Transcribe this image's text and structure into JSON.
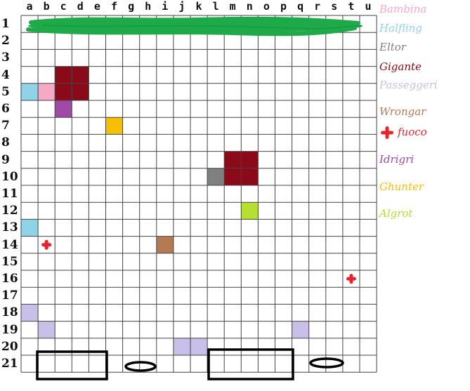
{
  "columns": [
    "a",
    "b",
    "c",
    "d",
    "e",
    "f",
    "g",
    "h",
    "i",
    "j",
    "k",
    "l",
    "m",
    "n",
    "o",
    "p",
    "q",
    "r",
    "s",
    "t",
    "u"
  ],
  "rows": [
    "1",
    "2",
    "3",
    "4",
    "5",
    "6",
    "7",
    "8",
    "9",
    "10",
    "11",
    "12",
    "13",
    "14",
    "15",
    "16",
    "17",
    "18",
    "19",
    "20",
    "21"
  ],
  "grid_color": "#444444",
  "header_scribble_color": "#1faa4a",
  "legend": [
    {
      "label": "Bambina",
      "color": "#f6a9c6"
    },
    {
      "label": "Halfling",
      "color": "#8fd3e8"
    },
    {
      "label": "Eltor",
      "color": "#808080"
    },
    {
      "label": "Gigante",
      "color": "#8b0a1a"
    },
    {
      "label": "Passeggeri",
      "color": "#c8c0e8"
    },
    {
      "label": "Wrongar",
      "color": "#b67a52"
    },
    {
      "label": "fuoco",
      "color": "#e8232e",
      "icon": "fire-cross-icon"
    },
    {
      "label": "Idrigri",
      "color": "#a049a6"
    },
    {
      "label": "Ghunter",
      "color": "#f5c000"
    },
    {
      "label": "Algrot",
      "color": "#b4e030"
    }
  ],
  "tokens": [
    {
      "type": "Gigante",
      "cells": [
        "c4",
        "d4",
        "c5",
        "d5"
      ]
    },
    {
      "type": "Halfling",
      "cells": [
        "a5"
      ]
    },
    {
      "type": "Bambina",
      "cells": [
        "b5"
      ]
    },
    {
      "type": "Idrigri",
      "cells": [
        "c6"
      ]
    },
    {
      "type": "Ghunter",
      "cells": [
        "f7"
      ]
    },
    {
      "type": "Gigante",
      "cells": [
        "m9",
        "n9",
        "m10",
        "n10"
      ]
    },
    {
      "type": "Eltor",
      "cells": [
        "l10"
      ]
    },
    {
      "type": "Algrot",
      "cells": [
        "n12"
      ]
    },
    {
      "type": "Halfling",
      "cells": [
        "a13"
      ]
    },
    {
      "type": "Wrongar",
      "cells": [
        "i14"
      ]
    },
    {
      "type": "fuoco",
      "cells": [
        "b14"
      ]
    },
    {
      "type": "fuoco",
      "cells": [
        "t16"
      ]
    },
    {
      "type": "Passeggeri",
      "cells": [
        "a18"
      ]
    },
    {
      "type": "Passeggeri",
      "cells": [
        "b19"
      ]
    },
    {
      "type": "Passeggeri",
      "cells": [
        "q19"
      ]
    },
    {
      "type": "Passeggeri",
      "cells": [
        "j20",
        "k20"
      ]
    }
  ],
  "bottom_shapes": [
    {
      "type": "rectangle",
      "name": "left-box"
    },
    {
      "type": "ellipse",
      "name": "left-ring"
    },
    {
      "type": "rectangle",
      "name": "right-box"
    },
    {
      "type": "ellipse",
      "name": "right-ring"
    }
  ]
}
